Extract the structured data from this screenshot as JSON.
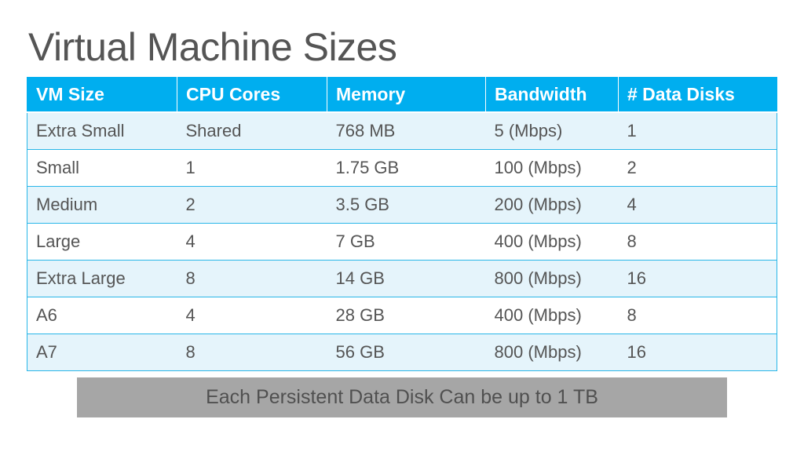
{
  "slide": {
    "title": "Virtual Machine Sizes",
    "note": "Each Persistent Data Disk Can be up to 1 TB"
  },
  "table": {
    "headers": [
      "VM Size",
      "CPU Cores",
      "Memory",
      "Bandwidth",
      "# Data Disks"
    ],
    "rows": [
      [
        "Extra Small",
        "Shared",
        "768 MB",
        "5 (Mbps)",
        "1"
      ],
      [
        "Small",
        "1",
        "1.75 GB",
        "100 (Mbps)",
        "2"
      ],
      [
        "Medium",
        "2",
        "3.5 GB",
        "200 (Mbps)",
        "4"
      ],
      [
        "Large",
        "4",
        "7 GB",
        "400 (Mbps)",
        "8"
      ],
      [
        "Extra Large",
        "8",
        "14 GB",
        "800 (Mbps)",
        "16"
      ],
      [
        "A6",
        "4",
        "28 GB",
        "400 (Mbps)",
        "8"
      ],
      [
        "A7",
        "8",
        "56 GB",
        "800 (Mbps)",
        "16"
      ]
    ]
  },
  "colors": {
    "header_background": "#00aeef",
    "row_tint": "#e5f4fb",
    "banner_background": "#a6a6a6",
    "text": "#555555"
  }
}
